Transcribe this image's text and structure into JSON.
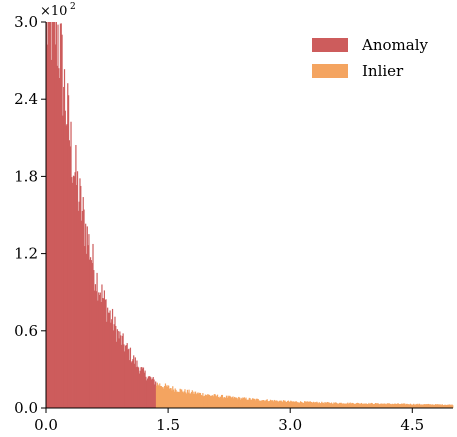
{
  "chart_data": {
    "type": "bar",
    "title": "",
    "xlabel": "",
    "ylabel": "",
    "xlim": [
      0.0,
      5.0
    ],
    "ylim": [
      0.0,
      3.0
    ],
    "x_ticks": [
      0.0,
      1.5,
      3.0,
      4.5
    ],
    "x_tick_labels": [
      "0.0",
      "1.5",
      "3.0",
      "4.5"
    ],
    "y_ticks": [
      0.0,
      0.6,
      1.2,
      1.8,
      2.4,
      3.0
    ],
    "y_tick_labels": [
      "0.0",
      "0.6",
      "1.2",
      "1.8",
      "2.4",
      "3.0"
    ],
    "y_scale_label": {
      "base": "×10",
      "exponent": "2"
    },
    "grid": false,
    "legend_position": "top-right",
    "bin_width": 0.01,
    "threshold": 1.35,
    "series": [
      {
        "name": "Anomaly",
        "color": "#cd5c5c",
        "x_range": [
          0.0,
          1.35
        ],
        "approx_values": [
          [
            0.0,
            3.0
          ],
          [
            0.1,
            3.0
          ],
          [
            0.15,
            2.9
          ],
          [
            0.2,
            2.6
          ],
          [
            0.3,
            2.05
          ],
          [
            0.4,
            1.65
          ],
          [
            0.5,
            1.35
          ],
          [
            0.6,
            1.05
          ],
          [
            0.7,
            0.85
          ],
          [
            0.8,
            0.7
          ],
          [
            0.9,
            0.55
          ],
          [
            1.0,
            0.45
          ],
          [
            1.1,
            0.35
          ],
          [
            1.2,
            0.27
          ],
          [
            1.3,
            0.22
          ],
          [
            1.35,
            0.2
          ]
        ]
      },
      {
        "name": "Inlier",
        "color": "#f4a460",
        "x_range": [
          1.35,
          5.0
        ],
        "approx_values": [
          [
            1.35,
            0.19
          ],
          [
            1.5,
            0.16
          ],
          [
            1.7,
            0.13
          ],
          [
            2.0,
            0.1
          ],
          [
            2.3,
            0.08
          ],
          [
            2.6,
            0.065
          ],
          [
            3.0,
            0.05
          ],
          [
            3.5,
            0.04
          ],
          [
            4.0,
            0.035
          ],
          [
            4.5,
            0.03
          ],
          [
            5.0,
            0.025
          ]
        ]
      }
    ]
  }
}
